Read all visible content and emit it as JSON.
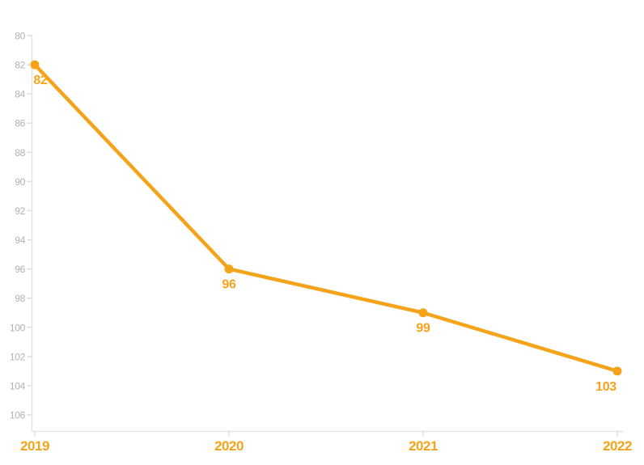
{
  "page": {
    "background_color": "#ffffff"
  },
  "chart_data": {
    "type": "line",
    "title": "",
    "x": [
      "2019",
      "2020",
      "2021",
      "2022"
    ],
    "series": [
      {
        "name": "value",
        "values": [
          82,
          96,
          99,
          103
        ]
      }
    ],
    "data_labels": [
      "82",
      "96",
      "99",
      "103"
    ],
    "ylim": [
      80,
      106
    ],
    "y_axis_inverted": true,
    "y_ticks": [
      80,
      82,
      84,
      86,
      88,
      90,
      92,
      94,
      96,
      98,
      100,
      102,
      104,
      106
    ],
    "grid": false,
    "legend": "none",
    "marker": "circle",
    "colors": {
      "line": "#F5A31B",
      "marker": "#F5A31B",
      "data_label": "#F5A31B",
      "x_tick_label": "#F5A31B",
      "y_tick_label": "#B2B2B2",
      "axis_line": "#E4E4E4",
      "tick_mark": "#DCDCDC"
    }
  }
}
